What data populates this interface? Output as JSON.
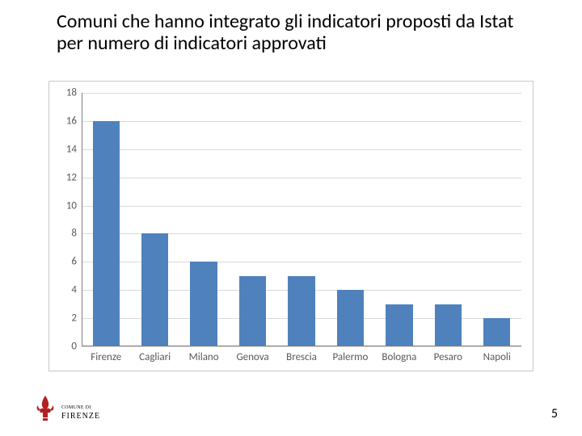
{
  "title": "Comuni che hanno integrato gli indicatori proposti da Istat per numero di indicatori approvati",
  "page_number": "5",
  "footer": {
    "org_line1": "COMUNE DI",
    "org_line2": "FIRENZE",
    "emblem_color": "#b22222"
  },
  "chart": {
    "type": "bar",
    "categories": [
      "Firenze",
      "Cagliari",
      "Milano",
      "Genova",
      "Brescia",
      "Palermo",
      "Bologna",
      "Pesaro",
      "Napoli"
    ],
    "values": [
      16,
      8,
      6,
      5,
      5,
      4,
      3,
      3,
      2
    ],
    "bar_color": "#4f81bd",
    "background_color": "#ffffff",
    "border_color": "#c8c8c8",
    "grid_color": "#d9d9d9",
    "axis_color": "#808080",
    "tick_label_color": "#595959",
    "ylim": [
      0,
      18
    ],
    "ytick_step": 2,
    "bar_width": 0.55,
    "title_fontsize": 24,
    "tick_fontsize": 13
  }
}
